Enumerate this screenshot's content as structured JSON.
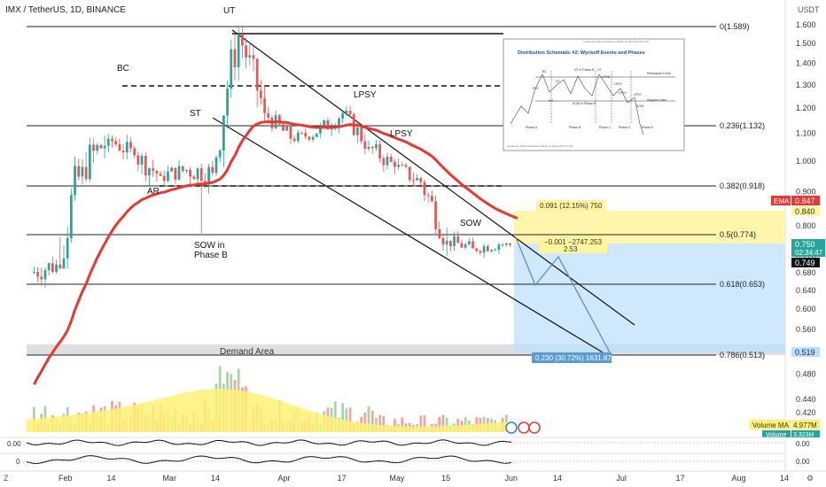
{
  "header": {
    "title": "IMX / TetherUS, 1D, BINANCE",
    "currency": "USDT"
  },
  "theme": {
    "up": "#26a69a",
    "down": "#ef5350",
    "ema": "#e53935",
    "fib_line": "#222222",
    "badge_blue": "#1e88e5",
    "ema_badge": "#e53935",
    "price_badge": "#26a69a",
    "volume_ma_fill": "#fff176"
  },
  "annotations": {
    "ut": "UT",
    "bc": "BC",
    "st": "ST",
    "ar": "AR",
    "lpsy1": "LPSY",
    "lpsy2": "LPSY",
    "sow": "SOW",
    "sow_phase_b_1": "SOW in",
    "sow_phase_b_2": "Phase B",
    "demand_area": "Demand Area"
  },
  "fib_labels": {
    "f0": "0(1.589)",
    "f236": "0.236(1.132)",
    "f382": "0.382(0.918)",
    "f50": "0.5(0.774)",
    "f618": "0.618(0.653)",
    "f786": "0.786(0.513)"
  },
  "measure": {
    "upper": "0.091 (12.15%) 750",
    "mid_1": "−0.001 −2747.253",
    "mid_2": "2.53",
    "lower": "0.230 (30.72%) 1631.87"
  },
  "price_axis": {
    "ticks": [
      "1.600",
      "1.500",
      "1.400",
      "1.300",
      "1.200",
      "1.100",
      "1.000",
      "0.900",
      "0.800",
      "0.720",
      "0.680",
      "0.640",
      "0.600",
      "0.560",
      "0.520",
      "0.480",
      "0.440",
      "0.420"
    ]
  },
  "badges": {
    "ema_label": "EMA",
    "ema_value": "0.847",
    "b840": "0.840",
    "price": "0.750",
    "countdown": "02:34:47",
    "last": "0.749",
    "b519": "0.519",
    "vol_ma_label": "Volume MA",
    "vol_ma_value": "4.977M",
    "volume_label": "Volume",
    "volume_value": "3.323M"
  },
  "x_axis": {
    "labels": [
      "Feb",
      "14",
      "Mar",
      "14",
      "Apr",
      "17",
      "May",
      "15",
      "Jun",
      "14",
      "Jul",
      "17",
      "Aug",
      "14"
    ]
  },
  "indicators": {
    "osc1_left": "0.00",
    "osc1_right": "0.00",
    "osc2_left": "0",
    "osc2_right": "0.00"
  },
  "inset": {
    "title": "Distribution Schematic #2: Wyckoff Events and Phases",
    "credit_top": "Created by Brian Mcasseen Belkin by Wyckoff's Pro Sim",
    "credit_bottom": "Created by Brian Mcasseen Belkin by Wyckoff's Pro Sim",
    "labels": {
      "bc": "BC",
      "ut": "UT",
      "psy": "PSY",
      "ar": "AR",
      "st": "ST",
      "ut_phase_b": "UT in Phase B",
      "sow_phase_b": "SOW in Phase B",
      "lpsy": "LPSY",
      "utad": "UTAD",
      "lpsy2": "LPSY",
      "lpsy3": "LPSY",
      "sow": "SOW",
      "resistance": "Resistance Lines",
      "support": "Support Lines",
      "phase_a": "Phase A",
      "phase_b": "Phase B",
      "phase_c": "Phase C",
      "phase_d": "Phase D",
      "phase_e": "Phase E"
    }
  },
  "chart_data": {
    "type": "candlestick",
    "title": "IMX / TetherUS, 1D, BINANCE",
    "y_scale": "log",
    "ylim": [
      0.42,
      1.65
    ],
    "x_start": "2022-01-22",
    "x_end": "2022-08-14",
    "ohlc_weekly_approx": [
      {
        "d": "2022-01-24",
        "o": 0.68,
        "h": 0.74,
        "l": 0.58,
        "c": 0.7
      },
      {
        "d": "2022-01-31",
        "o": 0.7,
        "h": 1.18,
        "l": 0.69,
        "c": 0.98
      },
      {
        "d": "2022-02-07",
        "o": 0.98,
        "h": 1.3,
        "l": 0.93,
        "c": 1.08
      },
      {
        "d": "2022-02-14",
        "o": 1.08,
        "h": 1.14,
        "l": 0.95,
        "c": 1.02
      },
      {
        "d": "2022-02-21",
        "o": 1.02,
        "h": 1.1,
        "l": 0.88,
        "c": 0.95
      },
      {
        "d": "2022-02-28",
        "o": 0.95,
        "h": 1.06,
        "l": 0.9,
        "c": 0.97
      },
      {
        "d": "2022-03-07",
        "o": 0.97,
        "h": 1.02,
        "l": 0.8,
        "c": 0.96
      },
      {
        "d": "2022-03-14",
        "o": 0.96,
        "h": 1.58,
        "l": 0.95,
        "c": 1.55
      },
      {
        "d": "2022-03-21",
        "o": 1.55,
        "h": 1.59,
        "l": 1.1,
        "c": 1.18
      },
      {
        "d": "2022-03-28",
        "o": 1.18,
        "h": 1.22,
        "l": 1.02,
        "c": 1.08
      },
      {
        "d": "2022-04-04",
        "o": 1.08,
        "h": 1.14,
        "l": 1.02,
        "c": 1.1
      },
      {
        "d": "2022-04-11",
        "o": 1.1,
        "h": 1.25,
        "l": 1.05,
        "c": 1.18
      },
      {
        "d": "2022-04-18",
        "o": 1.18,
        "h": 1.21,
        "l": 1.0,
        "c": 1.05
      },
      {
        "d": "2022-04-25",
        "o": 1.05,
        "h": 1.1,
        "l": 0.92,
        "c": 0.98
      },
      {
        "d": "2022-05-02",
        "o": 0.98,
        "h": 1.06,
        "l": 0.9,
        "c": 0.93
      },
      {
        "d": "2022-05-09",
        "o": 0.93,
        "h": 0.96,
        "l": 0.72,
        "c": 0.76
      },
      {
        "d": "2022-05-16",
        "o": 0.76,
        "h": 0.8,
        "l": 0.7,
        "c": 0.74
      },
      {
        "d": "2022-05-23",
        "o": 0.74,
        "h": 0.79,
        "l": 0.7,
        "c": 0.75
      },
      {
        "d": "2022-05-30",
        "o": 0.75,
        "h": 0.77,
        "l": 0.72,
        "c": 0.749
      }
    ],
    "ema_value": 0.847,
    "fib_levels": [
      {
        "ratio": "0",
        "price": 1.589
      },
      {
        "ratio": "0.236",
        "price": 1.132
      },
      {
        "ratio": "0.382",
        "price": 0.918
      },
      {
        "ratio": "0.5",
        "price": 0.774
      },
      {
        "ratio": "0.618",
        "price": 0.653
      },
      {
        "ratio": "0.786",
        "price": 0.513
      }
    ],
    "last_price": 0.749,
    "volume_ma": "4.977M",
    "volume": "3.323M"
  }
}
